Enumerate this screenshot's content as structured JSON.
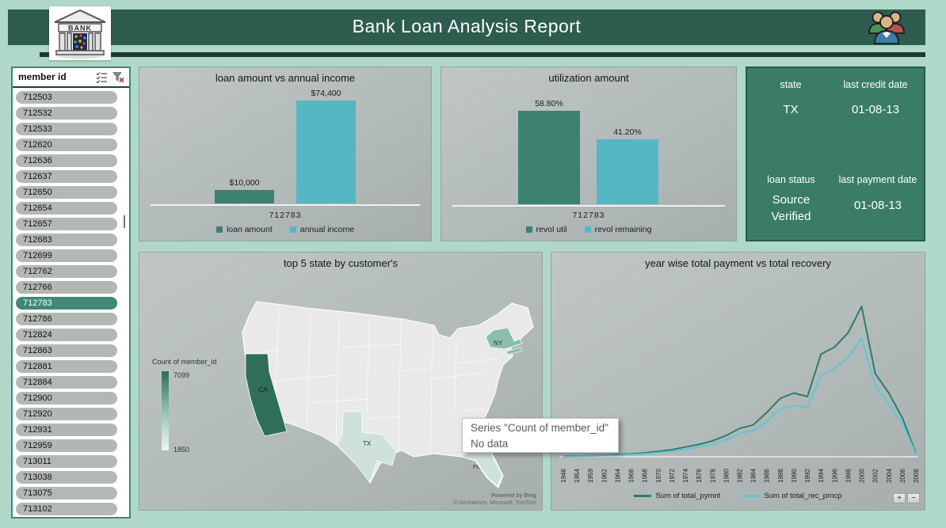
{
  "header": {
    "title": "Bank Loan Analysis Report",
    "logo_label": "BANK"
  },
  "slicer": {
    "title": "member id",
    "selected_id": "712783",
    "items": [
      "712503",
      "712532",
      "712533",
      "712620",
      "712636",
      "712637",
      "712650",
      "712654",
      "712657",
      "712683",
      "712699",
      "712762",
      "712766",
      "712783",
      "712786",
      "712824",
      "712863",
      "712881",
      "712884",
      "712900",
      "712920",
      "712931",
      "712959",
      "713011",
      "713038",
      "713075",
      "713102"
    ]
  },
  "info_panel": {
    "state_label": "state",
    "state_value": "TX",
    "last_credit_label": "last credit date",
    "last_credit_value": "01-08-13",
    "loan_status_label": "loan status",
    "loan_status_value": "Source Verified",
    "last_payment_label": "last payment date",
    "last_payment_value": "01-08-13"
  },
  "map_panel": {
    "labels": {
      "ca": "CA",
      "ny": "NY",
      "tx": "TX",
      "fl": "FL"
    },
    "attribution_line1": "Powered by Bing",
    "attribution_line2": "© GeoNames, Microsoft, TomTom"
  },
  "tooltip": {
    "line1": "Series \"Count of member_id\"",
    "line2": "No data"
  },
  "zoom_controls": {
    "plus": "+",
    "minus": "−"
  },
  "colors": {
    "page_bg": "#afd8c8",
    "header_green": "#2e5c4e",
    "info_panel_green": "#3a7c68",
    "accent_green": "#3d8170",
    "accent_cyan": "#55b7c4"
  },
  "chart_data": [
    {
      "id": "loan_vs_income",
      "type": "bar",
      "title": "loan amount vs annual income",
      "categories": [
        "712783"
      ],
      "series": [
        {
          "name": "loan amount",
          "values": [
            10000
          ],
          "label": "$10,000",
          "color": "#3d8170"
        },
        {
          "name": "annual income",
          "values": [
            74400
          ],
          "label": "$74,400",
          "color": "#55b7c4"
        }
      ],
      "ylim": [
        0,
        80000
      ],
      "grid": false,
      "legend_position": "bottom"
    },
    {
      "id": "utilization_amount",
      "type": "bar",
      "title": "utilization amount",
      "categories": [
        "712783"
      ],
      "series": [
        {
          "name": "revol util",
          "values": [
            58.8
          ],
          "label": "58.80%",
          "color": "#3d8170"
        },
        {
          "name": "revol remaining",
          "values": [
            41.2
          ],
          "label": "41.20%",
          "color": "#55b7c4"
        }
      ],
      "ylim": [
        0,
        70
      ],
      "grid": false,
      "legend_position": "bottom"
    },
    {
      "id": "yearwise_payment_vs_recovery",
      "type": "line",
      "title": "year wise total payment vs total recovery",
      "x": [
        1946,
        1954,
        1959,
        1962,
        1964,
        1966,
        1968,
        1970,
        1972,
        1974,
        1976,
        1978,
        1980,
        1982,
        1984,
        1986,
        1988,
        1990,
        1992,
        1994,
        1996,
        1998,
        2000,
        2002,
        2004,
        2006,
        2008
      ],
      "series": [
        {
          "name": "Sum of total_pymnt",
          "color": "#2e7d68",
          "values": [
            0.3,
            0.4,
            0.6,
            0.9,
            1.2,
            1.6,
            2.2,
            3,
            4,
            5.5,
            7,
            9,
            12,
            16,
            18,
            25,
            33,
            36,
            34,
            58,
            62,
            70,
            85,
            47,
            36,
            22,
            2
          ]
        },
        {
          "name": "Sum of total_rec_prncp",
          "color": "#62c6d4",
          "values": [
            0.2,
            0.3,
            0.45,
            0.7,
            0.9,
            1.2,
            1.7,
            2.3,
            3.1,
            4.3,
            5.5,
            7,
            9.5,
            13,
            15,
            20,
            27,
            29,
            28,
            46,
            50,
            56,
            67,
            40,
            30,
            19,
            1.5
          ]
        }
      ],
      "grid": false,
      "legend_position": "bottom",
      "note_axis": "y-axis unlabeled in source; values estimated from line heights"
    },
    {
      "id": "top5_state_map",
      "type": "heatmap",
      "title": "top 5 state by customer's",
      "legend": {
        "title": "Count of member_id",
        "max": "7099",
        "min": "1850"
      },
      "states": [
        {
          "code": "CA",
          "shade": "dark"
        },
        {
          "code": "NY",
          "shade": "medium"
        },
        {
          "code": "TX",
          "shade": "light"
        },
        {
          "code": "FL",
          "shade": "light"
        }
      ]
    }
  ]
}
